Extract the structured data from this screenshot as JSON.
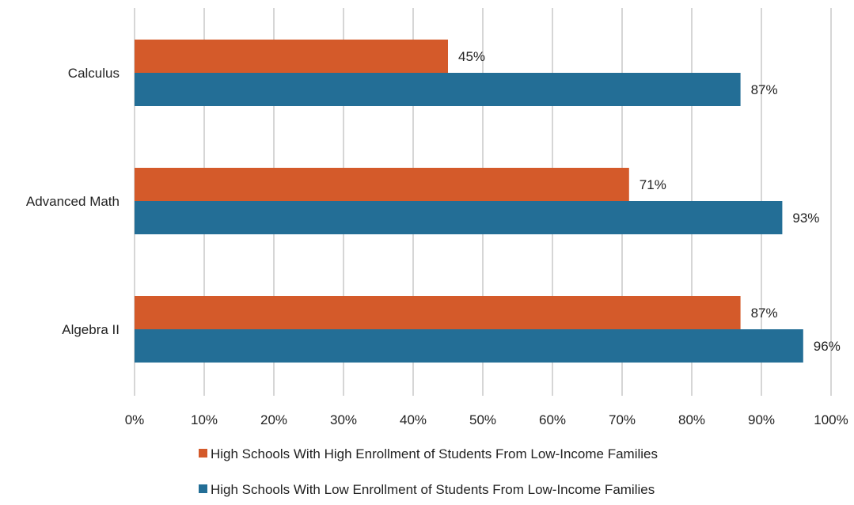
{
  "chart_data": {
    "type": "bar",
    "orientation": "horizontal",
    "categories": [
      "Calculus",
      "Advanced Math",
      "Algebra II"
    ],
    "series": [
      {
        "name": "High Schools With High Enrollment of Students From Low-Income Families",
        "values": [
          45,
          71,
          87
        ],
        "color": "#D45A2A"
      },
      {
        "name": "High Schools With Low Enrollment of Students From Low-Income Families",
        "values": [
          87,
          93,
          96
        ],
        "color": "#236E96"
      }
    ],
    "unit": "%",
    "xlim": [
      0,
      100
    ],
    "xticks": [
      0,
      10,
      20,
      30,
      40,
      50,
      60,
      70,
      80,
      90,
      100
    ],
    "tick_labels": [
      "0%",
      "10%",
      "20%",
      "30%",
      "40%",
      "50%",
      "60%",
      "70%",
      "80%",
      "90%",
      "100%"
    ],
    "grid": "vertical",
    "legend_position": "bottom",
    "data_labels": true,
    "title": "",
    "xlabel": "",
    "ylabel": ""
  }
}
